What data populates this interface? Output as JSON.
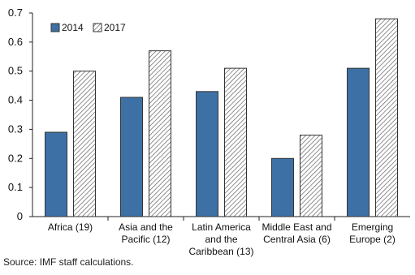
{
  "chart_data": {
    "type": "bar",
    "title": "",
    "categories": [
      [
        "Africa (19)"
      ],
      [
        "Asia and the",
        "Pacific (12)"
      ],
      [
        "Latin America",
        "and the",
        "Caribbean  (13)"
      ],
      [
        "Middle East and",
        "Central Asia (6)"
      ],
      [
        "Emerging",
        "Europe (2)"
      ]
    ],
    "series": [
      {
        "name": "2014",
        "values": [
          0.29,
          0.41,
          0.43,
          0.2,
          0.51
        ],
        "color": "#3d71a6",
        "pattern": "solid"
      },
      {
        "name": "2017",
        "values": [
          0.5,
          0.57,
          0.51,
          0.28,
          0.68
        ],
        "color": "#ffffff",
        "pattern": "hatch"
      }
    ],
    "ylim": [
      0,
      0.7
    ],
    "yticks": [
      "0",
      "0.1",
      "0.2",
      "0.3",
      "0.4",
      "0.5",
      "0.6",
      "0.7"
    ],
    "xlabel": "",
    "ylabel": "",
    "legend_position": "top-left",
    "grid": false
  },
  "source": "Source: IMF staff calculations."
}
